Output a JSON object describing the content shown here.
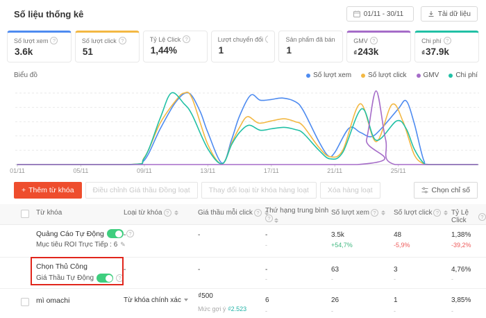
{
  "palette": {
    "accent_orange": "#EE4D2D",
    "positive_green": "#3FB77F",
    "negative_red": "#EE5A5A",
    "toggle_green": "#3ECE7E",
    "suggest_teal": "#21B2A6",
    "annotation_red": "#E1251B"
  },
  "icons": {
    "help_glyph": "?",
    "edit_glyph": "✎",
    "plus_glyph": "+"
  },
  "header": {
    "title": "Số liệu thống kê",
    "date_range": "01/11 - 30/11",
    "download_label": "Tải dữ liệu"
  },
  "cards": [
    {
      "label": "Số lượt xem",
      "value": "3.6k",
      "accent": "#4E8BF0"
    },
    {
      "label": "Số lượt click",
      "value": "51",
      "accent": "#F3B843"
    },
    {
      "label": "Tỷ Lệ Click",
      "value": "1,44%",
      "accent": ""
    },
    {
      "label": "Lượt chuyển đổi",
      "value": "1",
      "accent": ""
    },
    {
      "label": "Sản phẩm đã bán",
      "value": "1",
      "accent": ""
    },
    {
      "label": "GMV",
      "value": "243k",
      "currency": "₫",
      "accent": "#A56CC8"
    },
    {
      "label": "Chi phí",
      "value": "37.9k",
      "currency": "₫",
      "accent": "#21C0A5"
    }
  ],
  "chart": {
    "section_label": "Biểu đồ"
  },
  "chart_data": {
    "type": "line",
    "title": "Biểu đồ",
    "x_tick_labels": [
      "01/11",
      "05/11",
      "09/11",
      "13/11",
      "17/11",
      "21/11",
      "25/11"
    ],
    "x_tick_days": [
      1,
      5,
      9,
      13,
      17,
      21,
      25
    ],
    "x_range_days": [
      1,
      30
    ],
    "y_axis_labels_visible": false,
    "y_note": "values normalized as percent of each series max (no y labels shown)",
    "gridlines": [
      20,
      40,
      60,
      80,
      100
    ],
    "legend_position": "top-right",
    "draw_order": [
      0,
      1,
      3,
      2
    ],
    "series": [
      {
        "name": "Số lượt xem",
        "color": "#4E8BF0",
        "points": [
          [
            1,
            0
          ],
          [
            8,
            0
          ],
          [
            9,
            6
          ],
          [
            10,
            50
          ],
          [
            11,
            88
          ],
          [
            11.8,
            100
          ],
          [
            12.5,
            75
          ],
          [
            13,
            45
          ],
          [
            13.9,
            2
          ],
          [
            14.5,
            35
          ],
          [
            15,
            68
          ],
          [
            15.7,
            97
          ],
          [
            16.3,
            90
          ],
          [
            17,
            91
          ],
          [
            17.7,
            93
          ],
          [
            18.5,
            88
          ],
          [
            19,
            76
          ],
          [
            20,
            32
          ],
          [
            20.6,
            12
          ],
          [
            21,
            17
          ],
          [
            21.9,
            51
          ],
          [
            22.6,
            45
          ],
          [
            23.3,
            39
          ],
          [
            24,
            52
          ],
          [
            25,
            78
          ],
          [
            25.5,
            89
          ],
          [
            26,
            58
          ],
          [
            26.6,
            6
          ],
          [
            27,
            0
          ],
          [
            30,
            0
          ]
        ]
      },
      {
        "name": "Số lượt click",
        "color": "#F3B843",
        "points": [
          [
            1,
            0
          ],
          [
            8,
            0
          ],
          [
            9,
            10
          ],
          [
            10,
            58
          ],
          [
            11,
            90
          ],
          [
            11.5,
            100
          ],
          [
            12,
            93
          ],
          [
            13,
            28
          ],
          [
            13.9,
            1
          ],
          [
            14.5,
            30
          ],
          [
            15,
            52
          ],
          [
            15.5,
            67
          ],
          [
            16.2,
            58
          ],
          [
            17,
            61
          ],
          [
            17.8,
            64
          ],
          [
            18.5,
            60
          ],
          [
            19,
            54
          ],
          [
            20,
            24
          ],
          [
            20.7,
            11
          ],
          [
            21.5,
            20
          ],
          [
            22.6,
            85
          ],
          [
            23.6,
            32
          ],
          [
            24.6,
            84
          ],
          [
            25.3,
            60
          ],
          [
            26,
            14
          ],
          [
            26.6,
            1
          ],
          [
            27,
            0
          ],
          [
            30,
            0
          ]
        ]
      },
      {
        "name": "GMV",
        "color": "#A56CC8",
        "points": [
          [
            1,
            0
          ],
          [
            22.4,
            0
          ],
          [
            23,
            35
          ],
          [
            23.6,
            103
          ],
          [
            24.2,
            35
          ],
          [
            24.8,
            0
          ],
          [
            30,
            0
          ]
        ]
      },
      {
        "name": "Chi phí",
        "color": "#21C0A5",
        "points": [
          [
            1,
            0
          ],
          [
            8,
            0
          ],
          [
            9,
            9
          ],
          [
            10,
            65
          ],
          [
            10.7,
            100
          ],
          [
            11.5,
            85
          ],
          [
            12,
            70
          ],
          [
            13,
            22
          ],
          [
            13.9,
            1
          ],
          [
            14.5,
            28
          ],
          [
            15,
            45
          ],
          [
            15.6,
            55
          ],
          [
            16.3,
            48
          ],
          [
            17,
            50
          ],
          [
            17.8,
            52
          ],
          [
            18.5,
            49
          ],
          [
            19,
            44
          ],
          [
            20,
            20
          ],
          [
            20.7,
            8
          ],
          [
            21.5,
            17
          ],
          [
            22.7,
            78
          ],
          [
            23.6,
            34
          ],
          [
            24.9,
            61
          ],
          [
            25.5,
            50
          ],
          [
            26,
            22
          ],
          [
            26.6,
            2
          ],
          [
            27,
            0
          ],
          [
            30,
            0
          ]
        ]
      }
    ]
  },
  "toolbar": {
    "add_keyword": "Thêm từ khóa",
    "bulk_adjust_bid": "Điều chỉnh Giá thầu Đồng loạt",
    "bulk_change_type": "Thay đổi loại từ khóa hàng loạt",
    "bulk_delete": "Xóa hàng loạt",
    "choose_metrics": "Chọn chỉ số"
  },
  "table": {
    "headers": [
      "Từ khóa",
      "Loại từ khóa",
      "Giá thầu mỗi click",
      "Thứ hạng trung bình",
      "Số lượt xem",
      "Số lượt click",
      "Tỷ Lệ Click"
    ],
    "rows": [
      {
        "title": "Quảng Cáo Tự Động",
        "subtitle": "Mục tiêu ROI Trực Tiếp : 6",
        "loai": {
          "main": "-"
        },
        "gia": {
          "main": "-"
        },
        "hang": {
          "main": "-",
          "sub": "-"
        },
        "xem": {
          "main": "3.5k",
          "sub": "+54,7%"
        },
        "click": {
          "main": "48",
          "sub": "-5,9%"
        },
        "tyle": {
          "main": "1,38%",
          "sub": "-39,2%"
        }
      },
      {
        "title": "Chọn Thủ Công",
        "subtitle": "Giá Thầu Tự Động",
        "loai": {
          "main": "-"
        },
        "gia": {
          "main": "-"
        },
        "hang": {
          "main": "-",
          "sub": "-"
        },
        "xem": {
          "main": "63",
          "sub": "-"
        },
        "click": {
          "main": "3",
          "sub": "-"
        },
        "tyle": {
          "main": "4,76%",
          "sub": "-"
        }
      },
      {
        "title": "mì omachi",
        "subtitle": "",
        "loai": {
          "main": "Từ khóa chính xác"
        },
        "gia": {
          "main": "₫500",
          "sub": "Mức gợi ý",
          "sub2": "₫2.523"
        },
        "hang": {
          "main": "6",
          "sub": "-"
        },
        "xem": {
          "main": "26",
          "sub": "-"
        },
        "click": {
          "main": "1",
          "sub": "-"
        },
        "tyle": {
          "main": "3,85%",
          "sub": "-"
        }
      }
    ]
  }
}
